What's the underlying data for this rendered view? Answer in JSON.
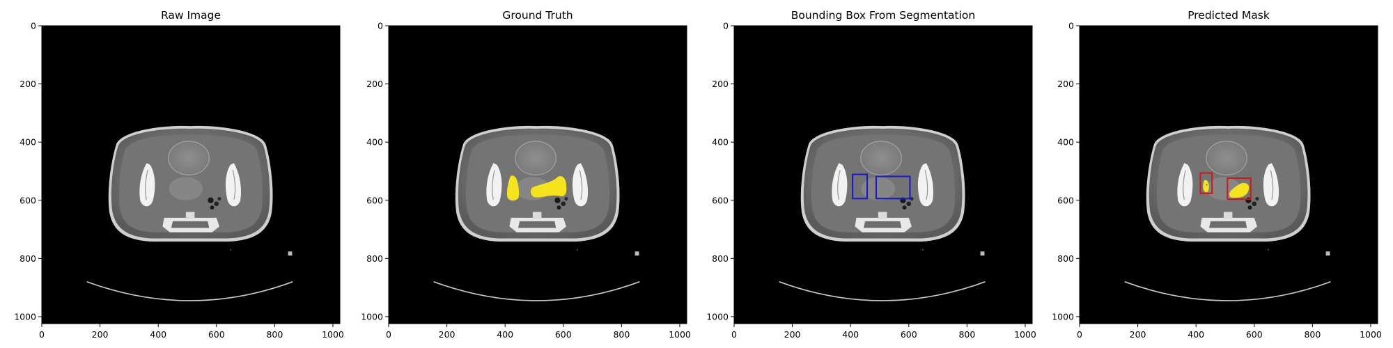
{
  "figure": {
    "panels": [
      {
        "title": "Raw Image",
        "overlay": "none"
      },
      {
        "title": "Ground Truth",
        "overlay": "ground_truth_mask"
      },
      {
        "title": "Bounding Box From Segmentation",
        "overlay": "bounding_boxes"
      },
      {
        "title": "Predicted Mask",
        "overlay": "predicted_mask_with_boxes"
      }
    ],
    "axis": {
      "x_range": [
        0,
        1024
      ],
      "y_range": [
        1024,
        0
      ],
      "x_ticks": [
        0,
        200,
        400,
        600,
        800,
        1000
      ],
      "y_ticks": [
        0,
        200,
        400,
        600,
        800,
        1000
      ]
    },
    "colors": {
      "mask": "#f5e31d",
      "segmentation_box": "#1a1acc",
      "prediction_box": "#cc1a1a",
      "background": "#000000"
    }
  }
}
